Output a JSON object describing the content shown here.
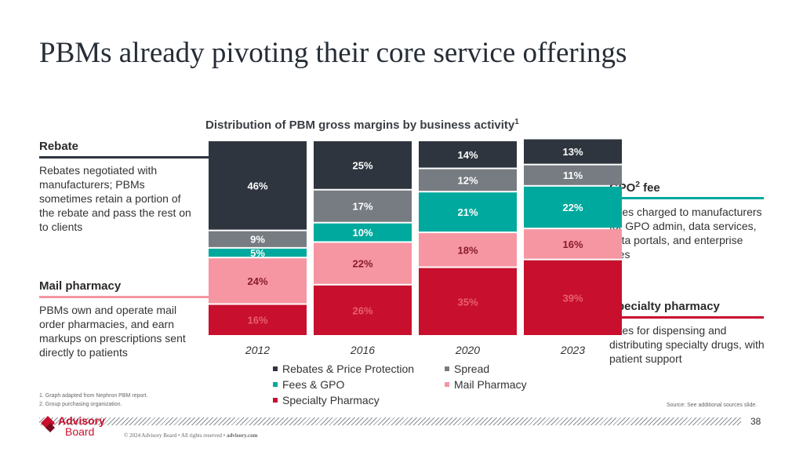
{
  "slide": {
    "title": "PBMs already pivoting their core service offerings",
    "page_number": "38",
    "source": "Source: See additional sources slide.",
    "copyright_prefix": "© 2024 Advisory Board • All rights reserved • ",
    "copyright_link": "advisory.com",
    "logo_top": "Advisory",
    "logo_bottom": "Board",
    "footnotes": [
      "1.  Graph adapted from Nephron PBM report.",
      "2.  Group purchasing organization."
    ]
  },
  "sidebars": {
    "rebate": {
      "title": "Rebate",
      "desc": "Rebates negotiated with manufacturers; PBMs sometimes retain a portion of the rebate and pass the rest on to clients"
    },
    "mail": {
      "title": "Mail pharmacy",
      "desc": "PBMs own and operate mail order pharmacies, and earn markups on prescriptions sent directly to patients"
    },
    "gpo": {
      "title": "GPO",
      "title_sup": "2",
      "title_suffix": " fee",
      "desc": "Fees charged to manufacturers for GPO admin, data services, data portals, and enterprise fees"
    },
    "specialty": {
      "title": "Specialty pharmacy",
      "desc": "Fees for dispensing and distributing specialty drugs, with patient support"
    }
  },
  "colors": {
    "rebates": "#2e353e",
    "spread": "#777c82",
    "fees": "#00a99d",
    "mail": "#f596a2",
    "specialty": "#c8102e"
  },
  "chart_data": {
    "type": "bar",
    "stacked": true,
    "title": "Distribution of PBM gross margins by business activity",
    "title_sup": "1",
    "categories": [
      "2012",
      "2016",
      "2020",
      "2023"
    ],
    "series": [
      {
        "key": "specialty",
        "name": "Specialty Pharmacy",
        "values": [
          16,
          26,
          35,
          39
        ]
      },
      {
        "key": "mail",
        "name": "Mail Pharmacy",
        "values": [
          24,
          22,
          18,
          16
        ]
      },
      {
        "key": "fees",
        "name": "Fees & GPO",
        "values": [
          5,
          10,
          21,
          22
        ]
      },
      {
        "key": "spread",
        "name": "Spread",
        "values": [
          9,
          17,
          12,
          11
        ]
      },
      {
        "key": "rebates",
        "name": "Rebates & Price Protection",
        "values": [
          46,
          25,
          14,
          13
        ]
      }
    ],
    "legend_order": [
      "Rebates & Price Protection",
      "Spread",
      "Fees & GPO",
      "Mail Pharmacy",
      "Specialty Pharmacy"
    ],
    "legend_placement": "bottom",
    "ylim": [
      0,
      100
    ],
    "grid": false
  }
}
